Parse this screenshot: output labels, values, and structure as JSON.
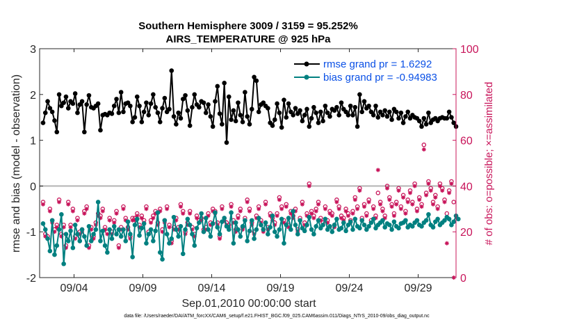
{
  "colors": {
    "rmse": "#000000",
    "bias": "#008080",
    "obs": "#c8145a",
    "legend_text": "#0a50e6",
    "zero_line": "#b4b4b4"
  },
  "chart_data": {
    "type": "line",
    "title_line1": "Southern Hemisphere 3009 / 3159 = 95.252%",
    "title_line2": "AIRS_TEMPERATURE @ 925 hPa",
    "xlabel": "Sep.01,2010 00:00:00 start",
    "ylabel": "rmse and bias (model - observation)",
    "ylabel_right": "# of obs: o=possible; ×=assimilated",
    "footnote": "data file: /Users/raeder/DAI/ATM_forcXX/CAM6_setup/f.e21.FHIST_BGC.f09_025.CAM6assim.011/Diags_NTrS_2010-09/obs_diag_output.nc",
    "xlim": [
      0.5,
      30.75
    ],
    "ylim": [
      -2,
      3
    ],
    "ylim_right": [
      0,
      100
    ],
    "x_ticks": [
      {
        "day": 3,
        "label": "09/04"
      },
      {
        "day": 8,
        "label": "09/09"
      },
      {
        "day": 13,
        "label": "09/14"
      },
      {
        "day": 18,
        "label": "09/19"
      },
      {
        "day": 23,
        "label": "09/24"
      },
      {
        "day": 28,
        "label": "09/29"
      }
    ],
    "y_ticks": [
      {
        "v": -2,
        "label": "-2"
      },
      {
        "v": -1,
        "label": "-1"
      },
      {
        "v": 0,
        "label": "0"
      },
      {
        "v": 1,
        "label": "1"
      },
      {
        "v": 2,
        "label": "2"
      },
      {
        "v": 3,
        "label": "3"
      }
    ],
    "y_ticks_right": [
      {
        "v": 0,
        "label": "0"
      },
      {
        "v": 20,
        "label": "20"
      },
      {
        "v": 40,
        "label": "40"
      },
      {
        "v": 60,
        "label": "60"
      },
      {
        "v": 80,
        "label": "80"
      },
      {
        "v": 100,
        "label": "100"
      }
    ],
    "legend_position": "top-right",
    "series": [
      {
        "name": "rmse grand pr = 1.6292",
        "key": "rmse",
        "values": [
          1.38,
          1.6,
          1.85,
          1.7,
          1.62,
          1.43,
          1.18,
          2.0,
          1.75,
          1.82,
          1.95,
          1.7,
          1.85,
          1.8,
          2.02,
          1.6,
          1.78,
          1.85,
          1.18,
          1.78,
          1.98,
          1.72,
          1.7,
          1.75,
          1.8,
          1.22,
          1.55,
          1.57,
          1.55,
          1.6,
          1.58,
          1.75,
          1.9,
          1.6,
          2.05,
          1.62,
          1.8,
          1.82,
          1.75,
          1.4,
          1.5,
          1.95,
          1.75,
          1.4,
          1.62,
          1.82,
          1.55,
          1.8,
          2.0,
          1.72,
          1.6,
          1.4,
          1.7,
          1.92,
          1.62,
          1.68,
          2.52,
          1.52,
          1.35,
          1.6,
          1.48,
          1.9,
          1.98,
          1.65,
          1.32,
          1.72,
          2.0,
          1.78,
          1.72,
          1.85,
          1.82,
          1.6,
          1.78,
          1.52,
          1.3,
          1.85,
          2.18,
          1.58,
          1.35,
          2.25,
          0.95,
          1.95,
          1.45,
          1.65,
          1.42,
          1.82,
          1.55,
          1.4,
          2.05,
          1.52,
          1.35,
          1.68,
          2.38,
          2.3,
          1.62,
          1.78,
          1.82,
          1.75,
          1.7,
          1.38,
          1.32,
          1.45,
          1.8,
          1.6,
          1.28,
          1.88,
          1.5,
          1.8,
          1.62,
          1.55,
          1.7,
          1.58,
          1.65,
          1.42,
          1.55,
          1.68,
          1.3,
          1.48,
          1.72,
          1.6,
          1.38,
          1.62,
          1.42,
          1.75,
          1.6,
          1.52,
          1.68,
          1.65,
          1.72,
          1.55,
          1.82,
          1.68,
          1.62,
          1.55,
          1.75,
          1.55,
          1.72,
          1.3,
          2.0,
          1.62,
          1.85,
          1.7,
          1.75,
          1.62,
          1.55,
          1.75,
          1.5,
          1.62,
          1.55,
          1.65,
          1.52,
          1.62,
          1.45,
          1.68,
          1.62,
          1.48,
          1.6,
          1.38,
          1.52,
          1.62,
          1.48,
          1.55,
          1.5,
          1.48,
          1.42,
          1.3,
          1.48,
          1.35,
          1.6,
          1.38,
          1.45,
          1.48,
          1.42,
          1.48,
          1.5,
          1.48,
          1.48,
          1.62,
          1.5,
          1.38,
          1.3
        ]
      },
      {
        "name": "bias grand pr = -0.94983",
        "key": "bias",
        "values": [
          -0.82,
          -0.95,
          -1.15,
          -1.42,
          -0.75,
          -1.5,
          -1.3,
          -0.95,
          -0.62,
          -1.7,
          -1.05,
          -1.2,
          -0.98,
          -1.35,
          -0.85,
          -1.05,
          -1.2,
          -0.95,
          -1.1,
          -1.3,
          -0.88,
          -1.2,
          -1.05,
          -0.95,
          -0.35,
          -1.2,
          -0.98,
          -1.3,
          -1.45,
          -0.95,
          -1.15,
          -0.88,
          -1.05,
          -0.95,
          -1.1,
          -0.95,
          -1.2,
          -0.78,
          -1.05,
          -1.55,
          -0.85,
          -0.72,
          -1.08,
          -0.92,
          -0.82,
          -1.25,
          -1.05,
          -0.95,
          -1.2,
          -0.98,
          -0.58,
          -1.45,
          -1.6,
          -0.75,
          -1.05,
          -1.25,
          -1.15,
          -0.68,
          -0.95,
          -1.1,
          -0.88,
          -1.48,
          -0.95,
          -0.72,
          -0.85,
          -1.05,
          -1.3,
          -0.92,
          -0.8,
          -0.6,
          -1.0,
          -0.7,
          -0.95,
          -1.1,
          -0.82,
          -0.58,
          -0.9,
          -1.05,
          -0.78,
          -0.7,
          -0.88,
          -0.95,
          -0.58,
          -1.25,
          -0.8,
          -0.95,
          -1.1,
          -0.88,
          -0.75,
          -1.2,
          -0.98,
          -0.75,
          -1.15,
          -0.95,
          -0.7,
          -0.85,
          -0.95,
          -0.8,
          -1.05,
          -0.9,
          -0.65,
          -1.0,
          -1.1,
          -0.95,
          -0.72,
          -1.25,
          -0.85,
          -0.7,
          -0.95,
          -0.55,
          -0.85,
          -1.05,
          -0.75,
          -0.92,
          -0.98,
          -0.85,
          -0.68,
          -0.95,
          -1.05,
          -0.88,
          -0.75,
          -0.92,
          -0.85,
          -0.72,
          -0.95,
          -0.88,
          -1.0,
          -0.85,
          -0.72,
          -0.95,
          -0.92,
          -0.8,
          -0.98,
          -0.85,
          -0.78,
          -0.95,
          -0.72,
          -0.88,
          -0.92,
          -0.75,
          -0.85,
          -0.95,
          -0.88,
          -0.8,
          -0.72,
          -0.92,
          -0.85,
          -0.8,
          -0.75,
          -0.9,
          -0.82,
          -0.85,
          -0.95,
          -0.78,
          -0.88,
          -0.92,
          -0.82,
          -0.8,
          -0.75,
          -0.9,
          -0.85,
          -0.88,
          -0.8,
          -0.75,
          -0.85,
          -0.88,
          -0.8,
          -0.75,
          -0.62,
          -0.85,
          -0.9,
          -0.78,
          -0.72,
          -0.85,
          -0.8,
          -0.75,
          -0.68,
          -0.72,
          -0.85,
          -0.78,
          -0.65,
          -0.72
        ]
      }
    ],
    "obs_possible": [
      33,
      19,
      18,
      30,
      25,
      21,
      23,
      34,
      19,
      23,
      14,
      33,
      23,
      30,
      18,
      26,
      20,
      21,
      29,
      31,
      14,
      22,
      18,
      24,
      28,
      27,
      30,
      22,
      20,
      26,
      20,
      25,
      29,
      14,
      22,
      31,
      26,
      22,
      18,
      26,
      26,
      28,
      23,
      27,
      25,
      31,
      20,
      25,
      27,
      29,
      24,
      30,
      21,
      25,
      31,
      23,
      16,
      22,
      26,
      22,
      32,
      29,
      20,
      24,
      29,
      22,
      19,
      27,
      25,
      26,
      21,
      22,
      28,
      24,
      30,
      29,
      24,
      18,
      31,
      26,
      24,
      23,
      32,
      25,
      21,
      27,
      30,
      22,
      26,
      34,
      30,
      24,
      20,
      27,
      31,
      25,
      21,
      33,
      22,
      28,
      26,
      24,
      28,
      35,
      31,
      25,
      32,
      23,
      29,
      27,
      30,
      21,
      26,
      33,
      24,
      28,
      41,
      29,
      27,
      30,
      33,
      26,
      24,
      31,
      25,
      29,
      28,
      23,
      34,
      31,
      27,
      26,
      30,
      28,
      25,
      29,
      35,
      31,
      39,
      26,
      32,
      28,
      34,
      25,
      31,
      27,
      37,
      33,
      30,
      27,
      40,
      35,
      32,
      28,
      33,
      39,
      31,
      36,
      29,
      34,
      38,
      33,
      41,
      30,
      35,
      32,
      58,
      37,
      42,
      39,
      33,
      36,
      31,
      41,
      39,
      34,
      28,
      38,
      42,
      33
    ],
    "obs_assimilated": [
      32,
      18,
      17,
      29,
      24,
      20,
      22,
      33,
      18,
      22,
      13,
      32,
      22,
      29,
      17,
      25,
      19,
      20,
      28,
      30,
      13,
      21,
      17,
      23,
      27,
      26,
      29,
      21,
      19,
      25,
      19,
      24,
      28,
      13,
      21,
      30,
      25,
      21,
      17,
      25,
      25,
      27,
      22,
      26,
      24,
      30,
      19,
      24,
      26,
      28,
      23,
      29,
      20,
      24,
      30,
      22,
      15,
      21,
      25,
      21,
      31,
      28,
      19,
      23,
      28,
      21,
      18,
      26,
      24,
      25,
      20,
      21,
      27,
      23,
      29,
      28,
      23,
      17,
      30,
      25,
      23,
      22,
      31,
      24,
      20,
      26,
      29,
      21,
      25,
      33,
      29,
      23,
      19,
      26,
      30,
      24,
      20,
      32,
      21,
      27,
      25,
      23,
      27,
      34,
      30,
      24,
      31,
      22,
      28,
      26,
      29,
      20,
      25,
      32,
      23,
      27,
      40,
      28,
      26,
      29,
      32,
      25,
      23,
      30,
      24,
      28,
      27,
      22,
      33,
      30,
      26,
      25,
      29,
      27,
      24,
      28,
      34,
      30,
      38,
      25,
      31,
      27,
      33,
      24,
      30,
      26,
      47,
      32,
      29,
      26,
      39,
      34,
      31,
      27,
      32,
      38,
      30,
      35,
      28,
      33,
      37,
      32,
      40,
      29,
      34,
      31,
      56,
      36,
      41,
      38,
      32,
      35,
      30,
      40,
      38,
      33,
      15,
      37,
      41,
      0
    ]
  }
}
